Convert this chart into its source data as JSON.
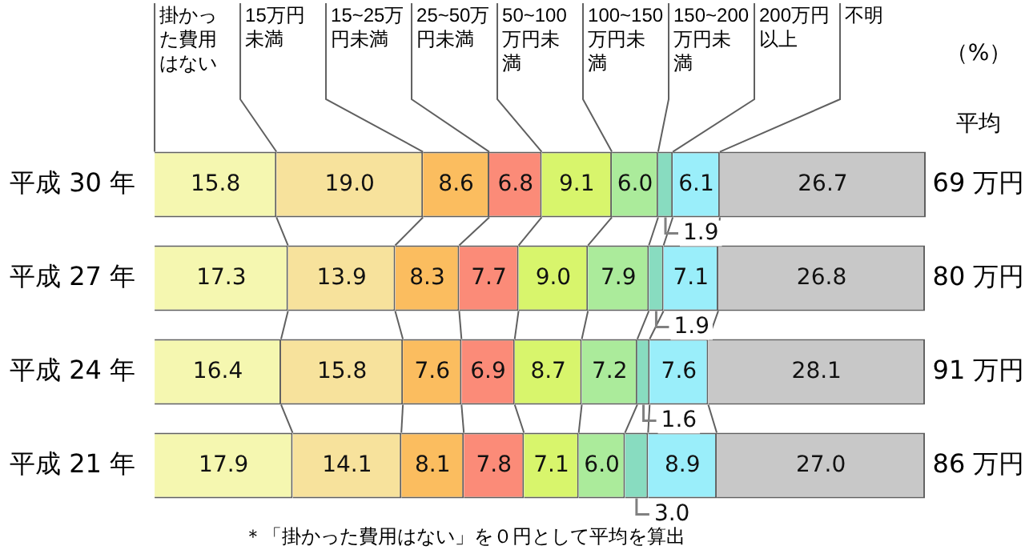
{
  "chart_data": {
    "type": "bar",
    "orientation": "horizontal",
    "stacked": true,
    "legend": false,
    "tick_labels": "y",
    "xlim": [
      0,
      100
    ],
    "xlabel": "（%）",
    "categories": [
      "平成 30 年",
      "平成 27 年",
      "平成 24 年",
      "平成 21 年"
    ],
    "series": [
      {
        "name": "掛かった費用はない",
        "color": "#f5f7b0",
        "values": [
          15.8,
          17.3,
          16.4,
          17.9
        ],
        "value_labels": [
          "15.8",
          "17.3",
          "16.4",
          "17.9"
        ]
      },
      {
        "name": "15万円未満",
        "color": "#f7e29c",
        "values": [
          19.0,
          13.9,
          15.8,
          14.1
        ],
        "value_labels": [
          "19.0",
          "13.9",
          "15.8",
          "14.1"
        ]
      },
      {
        "name": "15~25万円未満",
        "color": "#fbbd5f",
        "values": [
          8.6,
          8.3,
          7.6,
          8.1
        ],
        "value_labels": [
          "8.6",
          "8.3",
          "7.6",
          "8.1"
        ]
      },
      {
        "name": "25~50万円未満",
        "color": "#fb8b78",
        "values": [
          6.8,
          7.7,
          6.9,
          7.8
        ],
        "value_labels": [
          "6.8",
          "7.7",
          "6.9",
          "7.8"
        ]
      },
      {
        "name": "50~100万円未満",
        "color": "#d8f56c",
        "values": [
          9.1,
          9.0,
          8.7,
          7.1
        ],
        "value_labels": [
          "9.1",
          "9.0",
          "8.7",
          "7.1"
        ]
      },
      {
        "name": "100~150万円未満",
        "color": "#abeb9b",
        "values": [
          6.0,
          7.9,
          7.2,
          6.0
        ],
        "value_labels": [
          "6.0",
          "7.9",
          "7.2",
          "6.0"
        ]
      },
      {
        "name": "150~200万円未満",
        "color": "#88dcc0",
        "values": [
          1.9,
          1.9,
          1.6,
          3.0
        ],
        "value_labels": [
          "1.9",
          "1.9",
          "1.6",
          "3.0"
        ]
      },
      {
        "name": "200万円以上",
        "color": "#9aeefa",
        "values": [
          6.1,
          7.1,
          7.6,
          8.9
        ],
        "value_labels": [
          "6.1",
          "7.1",
          "7.6",
          "8.9"
        ]
      },
      {
        "name": "不明",
        "color": "#c8c8c8",
        "values": [
          26.7,
          26.8,
          28.1,
          27.0
        ],
        "value_labels": [
          "26.7",
          "26.8",
          "28.1",
          "27.0"
        ]
      }
    ],
    "annotations": [
      "平均",
      "69 万円",
      "80 万円",
      "91 万円",
      "86 万円",
      "＊「掛かった費用はない」を０円として平均を算出"
    ]
  }
}
